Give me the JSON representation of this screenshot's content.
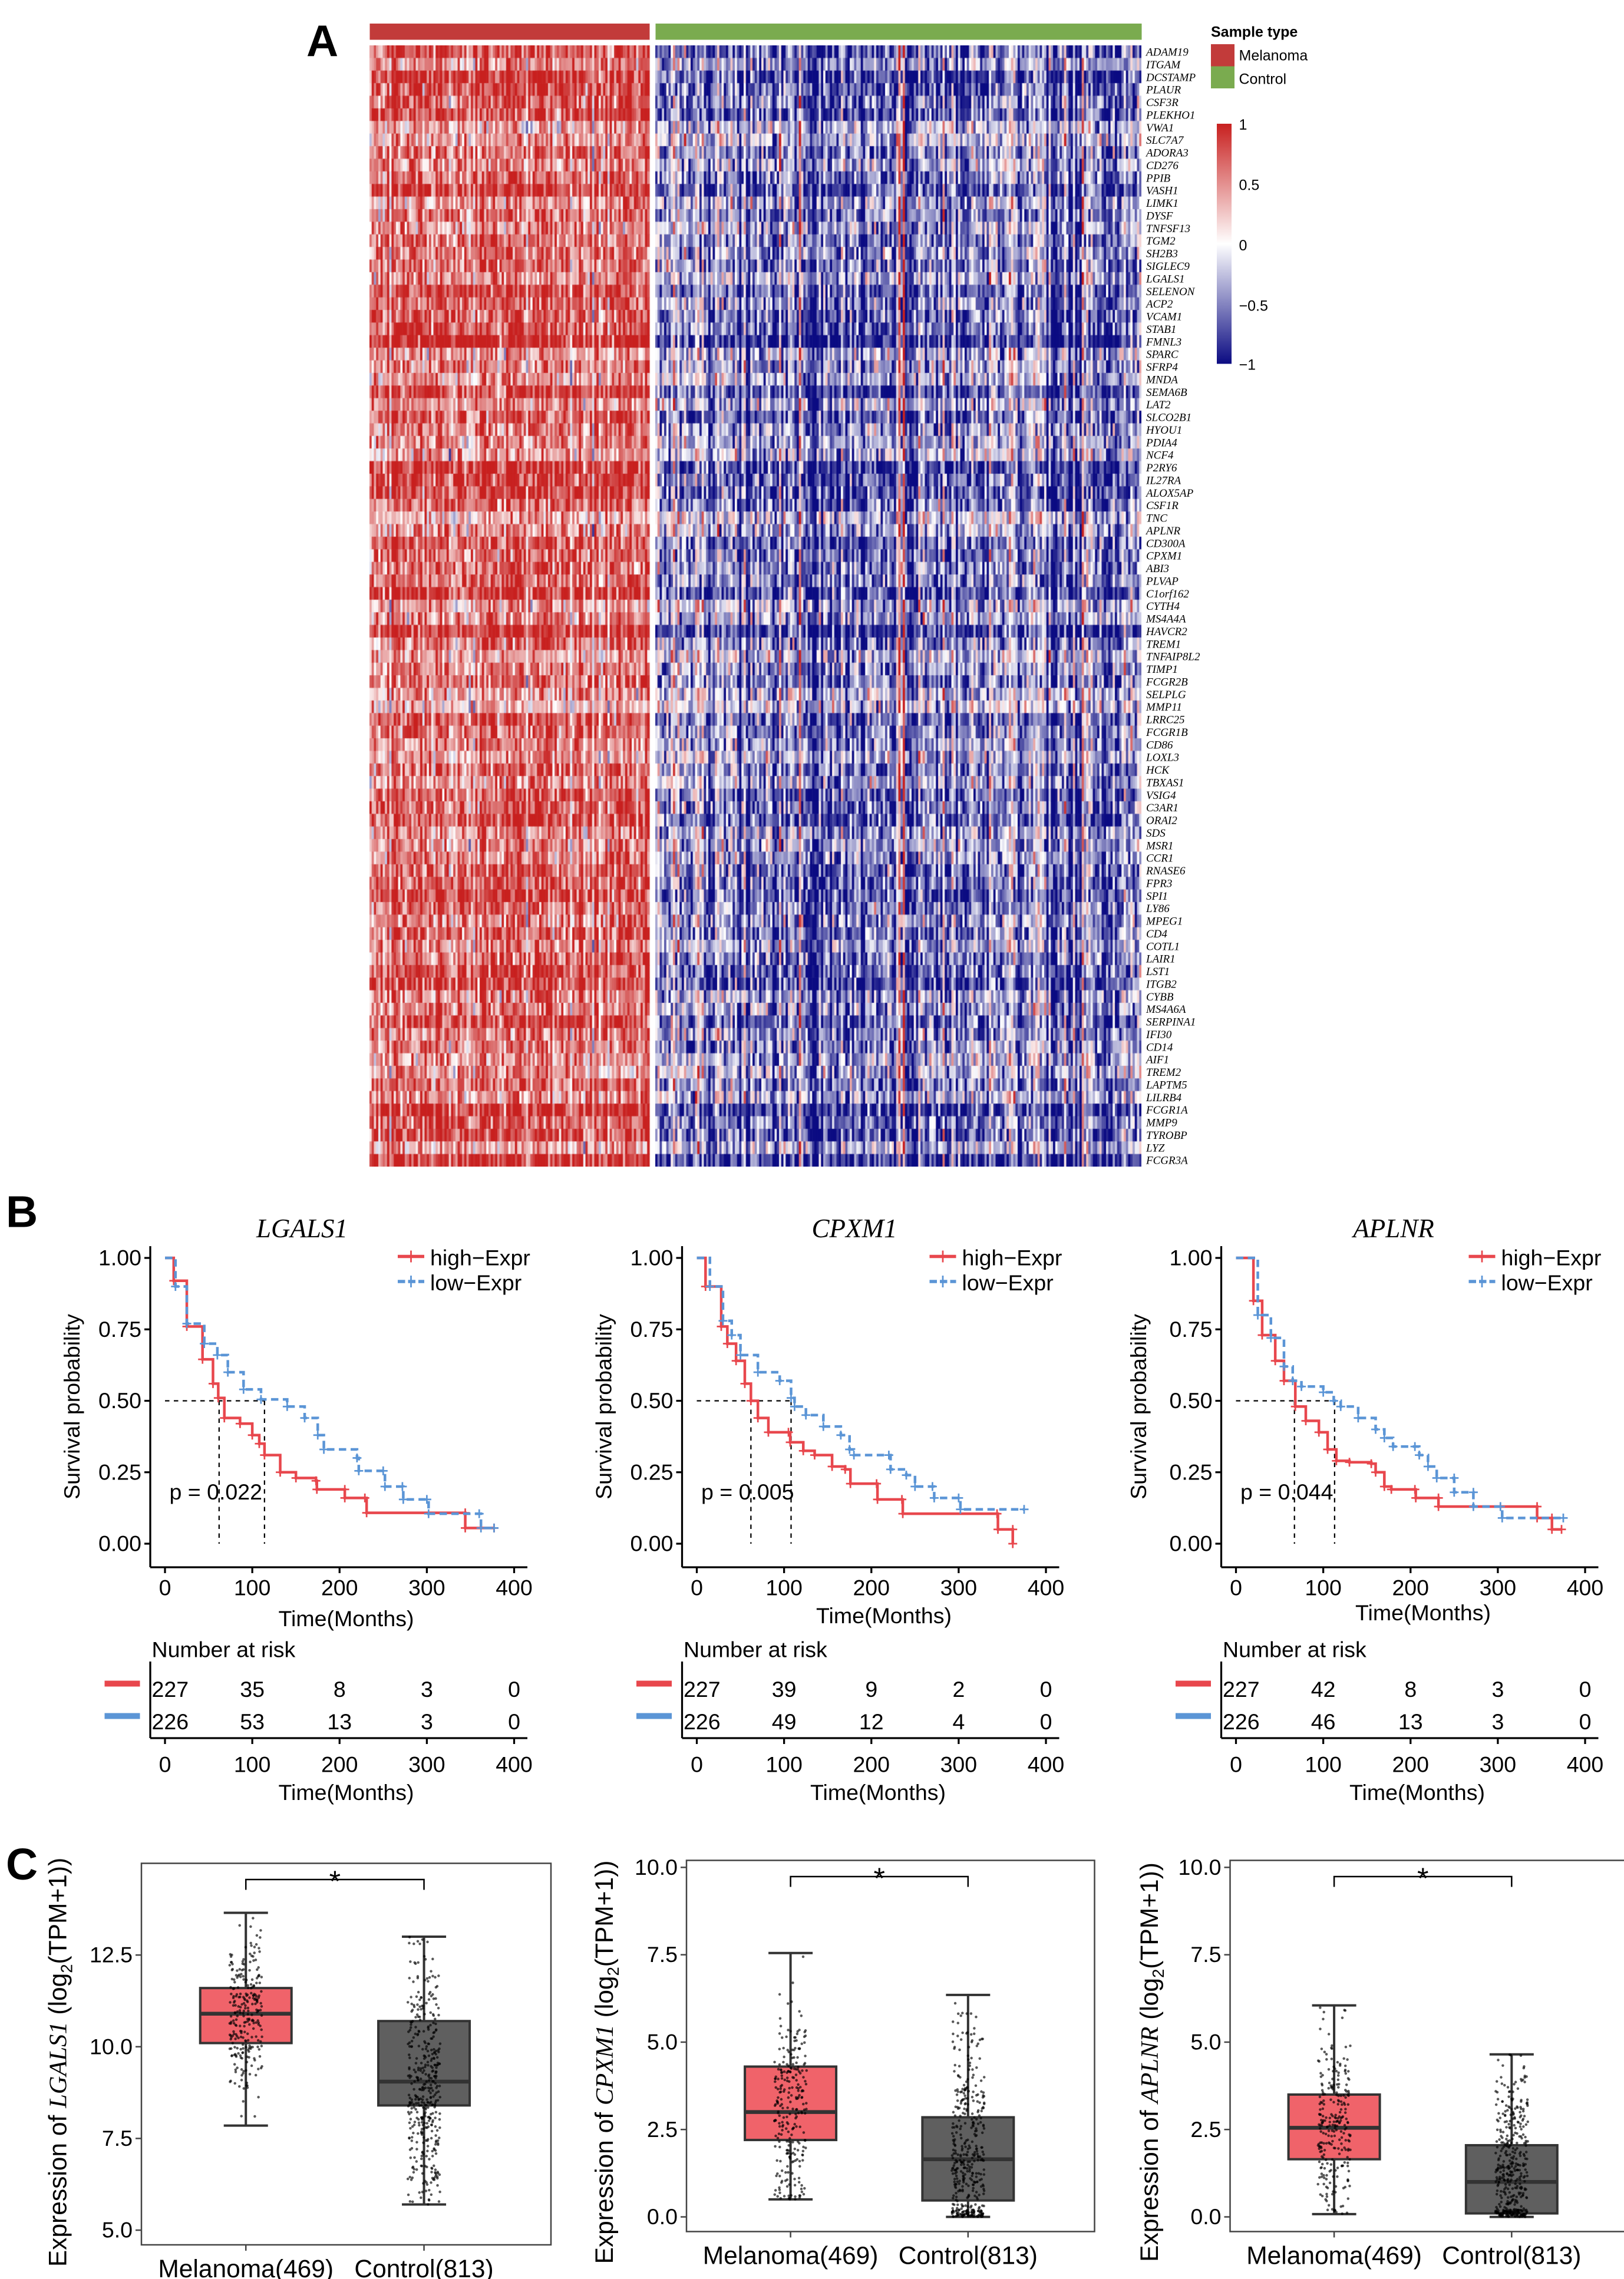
{
  "figure": {
    "panel_labels": [
      "A",
      "B",
      "C"
    ]
  },
  "chart_data": [
    {
      "type": "heatmap",
      "panel": "A",
      "annotation_title": "Sample type",
      "groups": [
        {
          "name": "Melanoma",
          "color": "#c23b3a"
        },
        {
          "name": "Control",
          "color": "#7aab4f"
        }
      ],
      "rows": [
        "ADAM19",
        "ITGAM",
        "DCSTAMP",
        "PLAUR",
        "CSF3R",
        "PLEKHO1",
        "VWA1",
        "SLC7A7",
        "ADORA3",
        "CD276",
        "PPIB",
        "VASH1",
        "LIMK1",
        "DYSF",
        "TNFSF13",
        "TGM2",
        "SH2B3",
        "SIGLEC9",
        "LGALS1",
        "SELENON",
        "ACP2",
        "VCAM1",
        "STAB1",
        "FMNL3",
        "SPARC",
        "SFRP4",
        "MNDA",
        "SEMA6B",
        "LAT2",
        "SLCO2B1",
        "HYOU1",
        "PDIA4",
        "NCF4",
        "P2RY6",
        "IL27RA",
        "ALOX5AP",
        "CSF1R",
        "TNC",
        "APLNR",
        "CD300A",
        "CPXM1",
        "ABI3",
        "PLVAP",
        "C1orf162",
        "CYTH4",
        "MS4A4A",
        "HAVCR2",
        "TREM1",
        "TNFAIP8L2",
        "TIMP1",
        "FCGR2B",
        "SELPLG",
        "MMP11",
        "LRRC25",
        "FCGR1B",
        "CD86",
        "LOXL3",
        "HCK",
        "TBXAS1",
        "VSIG4",
        "C3AR1",
        "ORAI2",
        "SDS",
        "MSR1",
        "CCR1",
        "RNASE6",
        "FPR3",
        "SPI1",
        "LY86",
        "MPEG1",
        "CD4",
        "COTL1",
        "LAIR1",
        "LST1",
        "ITGB2",
        "CYBB",
        "MS4A6A",
        "SERPINA1",
        "IFI30",
        "CD14",
        "AIF1",
        "TREM2",
        "LAPTM5",
        "LILRB4",
        "FCGR1A",
        "MMP9",
        "TYROBP",
        "LYZ",
        "FCGR3A"
      ],
      "pattern": {
        "Melanoma": "mostly high (red)",
        "Control": "mostly low (blue)"
      },
      "colorbar": {
        "range": [
          -1,
          1
        ],
        "ticks": [
          "1",
          "0.5",
          "0",
          "−0.5",
          "−1"
        ],
        "tick_values": [
          1,
          0.5,
          0,
          -0.5,
          -1
        ],
        "colors": {
          "high": "#c8201f",
          "mid": "#ffffff",
          "low": "#0b0b82"
        }
      }
    },
    {
      "type": "line",
      "subtype": "kaplan-meier",
      "panel": "B",
      "title": "LGALS1",
      "xlabel": "Time(Months)",
      "ylabel": "Survival probability",
      "xlim": [
        0,
        400
      ],
      "ylim": [
        0,
        1
      ],
      "xticks": [
        "0",
        "100",
        "200",
        "300",
        "400"
      ],
      "yticks": [
        "0.00",
        "0.25",
        "0.50",
        "0.75",
        "1.00"
      ],
      "p_value": "p = 0.022",
      "median_survival": [
        62,
        114
      ],
      "legend": "top-right",
      "series": [
        {
          "name": "high−Expr",
          "color": "#e8474d",
          "dashed": false,
          "points": [
            [
              0,
              1.0
            ],
            [
              10,
              0.92
            ],
            [
              25,
              0.76
            ],
            [
              43,
              0.645
            ],
            [
              55,
              0.56
            ],
            [
              61,
              0.51
            ],
            [
              68,
              0.44
            ],
            [
              86,
              0.42
            ],
            [
              100,
              0.38
            ],
            [
              108,
              0.35
            ],
            [
              114,
              0.31
            ],
            [
              132,
              0.25
            ],
            [
              150,
              0.23
            ],
            [
              173,
              0.22
            ],
            [
              174,
              0.19
            ],
            [
              206,
              0.19
            ],
            [
              206,
              0.16
            ],
            [
              229,
              0.16
            ],
            [
              231,
              0.108
            ],
            [
              344,
              0.108
            ],
            [
              344,
              0.055
            ],
            [
              377,
              0.055
            ]
          ]
        },
        {
          "name": "low−Expr",
          "color": "#5b95d6",
          "dashed": true,
          "points": [
            [
              0,
              1.0
            ],
            [
              12,
              0.9
            ],
            [
              25,
              0.77
            ],
            [
              45,
              0.7
            ],
            [
              60,
              0.66
            ],
            [
              72,
              0.6
            ],
            [
              90,
              0.54
            ],
            [
              110,
              0.505
            ],
            [
              140,
              0.48
            ],
            [
              160,
              0.44
            ],
            [
              175,
              0.38
            ],
            [
              182,
              0.33
            ],
            [
              220,
              0.3
            ],
            [
              222,
              0.255
            ],
            [
              250,
              0.255
            ],
            [
              252,
              0.2
            ],
            [
              272,
              0.2
            ],
            [
              273,
              0.155
            ],
            [
              300,
              0.155
            ],
            [
              302,
              0.105
            ],
            [
              360,
              0.105
            ],
            [
              362,
              0.055
            ],
            [
              377,
              0.055
            ]
          ]
        }
      ],
      "risk_table": {
        "title": "Number at risk",
        "times": [
          0,
          100,
          200,
          300,
          400
        ],
        "rows": [
          [
            "227",
            "35",
            "8",
            "3",
            "0"
          ],
          [
            "226",
            "53",
            "13",
            "3",
            "0"
          ]
        ]
      }
    },
    {
      "type": "line",
      "subtype": "kaplan-meier",
      "panel": "B",
      "title": "CPXM1",
      "xlabel": "Time(Months)",
      "ylabel": "Survival probability",
      "xlim": [
        0,
        400
      ],
      "ylim": [
        0,
        1
      ],
      "xticks": [
        "0",
        "100",
        "200",
        "300",
        "400"
      ],
      "yticks": [
        "0.00",
        "0.25",
        "0.50",
        "0.75",
        "1.00"
      ],
      "p_value": "p = 0.005",
      "median_survival": [
        62,
        108
      ],
      "legend": "top-right",
      "series": [
        {
          "name": "high−Expr",
          "color": "#e8474d",
          "dashed": false,
          "points": [
            [
              0,
              1.0
            ],
            [
              10,
              0.9
            ],
            [
              28,
              0.76
            ],
            [
              35,
              0.7
            ],
            [
              45,
              0.64
            ],
            [
              55,
              0.56
            ],
            [
              62,
              0.5
            ],
            [
              70,
              0.44
            ],
            [
              82,
              0.39
            ],
            [
              105,
              0.39
            ],
            [
              107,
              0.355
            ],
            [
              122,
              0.325
            ],
            [
              135,
              0.31
            ],
            [
              155,
              0.27
            ],
            [
              170,
              0.26
            ],
            [
              176,
              0.21
            ],
            [
              206,
              0.21
            ],
            [
              207,
              0.155
            ],
            [
              235,
              0.155
            ],
            [
              236,
              0.105
            ],
            [
              344,
              0.105
            ],
            [
              345,
              0.05
            ],
            [
              362,
              0.05
            ],
            [
              362,
              0.0
            ]
          ]
        },
        {
          "name": "low−Expr",
          "color": "#5b95d6",
          "dashed": true,
          "points": [
            [
              0,
              1.0
            ],
            [
              15,
              0.9
            ],
            [
              30,
              0.78
            ],
            [
              40,
              0.73
            ],
            [
              50,
              0.66
            ],
            [
              70,
              0.6
            ],
            [
              95,
              0.57
            ],
            [
              108,
              0.51
            ],
            [
              112,
              0.48
            ],
            [
              125,
              0.45
            ],
            [
              145,
              0.41
            ],
            [
              165,
              0.38
            ],
            [
              175,
              0.33
            ],
            [
              180,
              0.31
            ],
            [
              220,
              0.31
            ],
            [
              222,
              0.26
            ],
            [
              240,
              0.24
            ],
            [
              250,
              0.2
            ],
            [
              270,
              0.2
            ],
            [
              272,
              0.16
            ],
            [
              300,
              0.16
            ],
            [
              302,
              0.12
            ],
            [
              375,
              0.12
            ]
          ]
        }
      ],
      "risk_table": {
        "title": "Number at risk",
        "times": [
          0,
          100,
          200,
          300,
          400
        ],
        "rows": [
          [
            "227",
            "39",
            "9",
            "2",
            "0"
          ],
          [
            "226",
            "49",
            "12",
            "4",
            "0"
          ]
        ]
      }
    },
    {
      "type": "line",
      "subtype": "kaplan-meier",
      "panel": "B",
      "title": "APLNR",
      "xlabel": "Time(Months)",
      "ylabel": "Survival probability",
      "xlim": [
        0,
        400
      ],
      "ylim": [
        0,
        1
      ],
      "xticks": [
        "0",
        "100",
        "200",
        "300",
        "400"
      ],
      "yticks": [
        "0.00",
        "0.25",
        "0.50",
        "0.75",
        "1.00"
      ],
      "p_value": "p = 0.044",
      "median_survival": [
        67,
        113
      ],
      "legend": "top-right",
      "series": [
        {
          "name": "high−Expr",
          "color": "#e8474d",
          "dashed": false,
          "points": [
            [
              0,
              1.0
            ],
            [
              20,
              0.85
            ],
            [
              30,
              0.73
            ],
            [
              45,
              0.64
            ],
            [
              55,
              0.57
            ],
            [
              68,
              0.48
            ],
            [
              80,
              0.43
            ],
            [
              95,
              0.39
            ],
            [
              105,
              0.33
            ],
            [
              115,
              0.29
            ],
            [
              130,
              0.285
            ],
            [
              155,
              0.28
            ],
            [
              160,
              0.25
            ],
            [
              170,
              0.2
            ],
            [
              178,
              0.19
            ],
            [
              205,
              0.19
            ],
            [
              206,
              0.16
            ],
            [
              232,
              0.16
            ],
            [
              232,
              0.13
            ],
            [
              345,
              0.13
            ],
            [
              345,
              0.09
            ],
            [
              362,
              0.09
            ],
            [
              362,
              0.05
            ],
            [
              373,
              0.05
            ]
          ]
        },
        {
          "name": "low−Expr",
          "color": "#5b95d6",
          "dashed": true,
          "points": [
            [
              0,
              1.0
            ],
            [
              25,
              0.8
            ],
            [
              40,
              0.72
            ],
            [
              55,
              0.62
            ],
            [
              65,
              0.57
            ],
            [
              75,
              0.55
            ],
            [
              100,
              0.53
            ],
            [
              112,
              0.5
            ],
            [
              120,
              0.48
            ],
            [
              140,
              0.44
            ],
            [
              160,
              0.4
            ],
            [
              170,
              0.37
            ],
            [
              180,
              0.34
            ],
            [
              205,
              0.34
            ],
            [
              210,
              0.31
            ],
            [
              220,
              0.27
            ],
            [
              230,
              0.23
            ],
            [
              250,
              0.23
            ],
            [
              250,
              0.18
            ],
            [
              272,
              0.18
            ],
            [
              272,
              0.13
            ],
            [
              303,
              0.13
            ],
            [
              305,
              0.09
            ],
            [
              375,
              0.09
            ]
          ]
        }
      ],
      "risk_table": {
        "title": "Number at risk",
        "times": [
          0,
          100,
          200,
          300,
          400
        ],
        "rows": [
          [
            "227",
            "42",
            "8",
            "3",
            "0"
          ],
          [
            "226",
            "46",
            "13",
            "3",
            "0"
          ]
        ]
      }
    },
    {
      "type": "box",
      "panel": "C",
      "ylabel": {
        "prefix": "Expression of ",
        "gene": "LGALS1",
        "mid": " (log",
        "sub": "2",
        "suffix": "(TPM+1))"
      },
      "categories": [
        "Melanoma(469)",
        "Control(813)"
      ],
      "ylim": [
        4.6,
        15.0
      ],
      "yticks": [
        "5.0",
        "7.5",
        "10.0",
        "12.5"
      ],
      "ytick_values": [
        5.0,
        7.5,
        10.0,
        12.5
      ],
      "significance": "*",
      "series": [
        {
          "q1": 10.1,
          "median": 10.9,
          "q3": 11.6,
          "whisker_low": 7.85,
          "whisker_high": 13.65,
          "color": "#f0636a"
        },
        {
          "q1": 8.4,
          "median": 9.05,
          "q3": 10.7,
          "whisker_low": 5.7,
          "whisker_high": 13.0,
          "color": "#5f5f5f"
        }
      ]
    },
    {
      "type": "box",
      "panel": "C",
      "ylabel": {
        "prefix": "Expression of ",
        "gene": "CPXM1",
        "mid": " (log",
        "sub": "2",
        "suffix": "(TPM+1))"
      },
      "categories": [
        "Melanoma(469)",
        "Control(813)"
      ],
      "ylim": [
        -0.42,
        10.2
      ],
      "yticks": [
        "0.0",
        "2.5",
        "5.0",
        "7.5",
        "10.0"
      ],
      "ytick_values": [
        0,
        2.5,
        5.0,
        7.5,
        10.0
      ],
      "significance": "*",
      "series": [
        {
          "q1": 2.2,
          "median": 3.0,
          "q3": 4.3,
          "whisker_low": 0.5,
          "whisker_high": 7.55,
          "color": "#f0636a"
        },
        {
          "q1": 0.47,
          "median": 1.65,
          "q3": 2.85,
          "whisker_low": 0.0,
          "whisker_high": 6.35,
          "color": "#5f5f5f"
        }
      ]
    },
    {
      "type": "box",
      "panel": "C",
      "ylabel": {
        "prefix": "Expression of ",
        "gene": "APLNR",
        "mid": " (log",
        "sub": "2",
        "suffix": "(TPM+1))"
      },
      "categories": [
        "Melanoma(469)",
        "Control(813)"
      ],
      "ylim": [
        -0.42,
        10.2
      ],
      "yticks": [
        "0.0",
        "2.5",
        "5.0",
        "7.5",
        "10.0"
      ],
      "ytick_values": [
        0,
        2.5,
        5.0,
        7.5,
        10.0
      ],
      "significance": "*",
      "series": [
        {
          "q1": 1.65,
          "median": 2.55,
          "q3": 3.5,
          "whisker_low": 0.08,
          "whisker_high": 6.05,
          "color": "#f0636a"
        },
        {
          "q1": 0.1,
          "median": 1.0,
          "q3": 2.05,
          "whisker_low": 0.0,
          "whisker_high": 4.65,
          "color": "#5f5f5f"
        }
      ]
    }
  ]
}
